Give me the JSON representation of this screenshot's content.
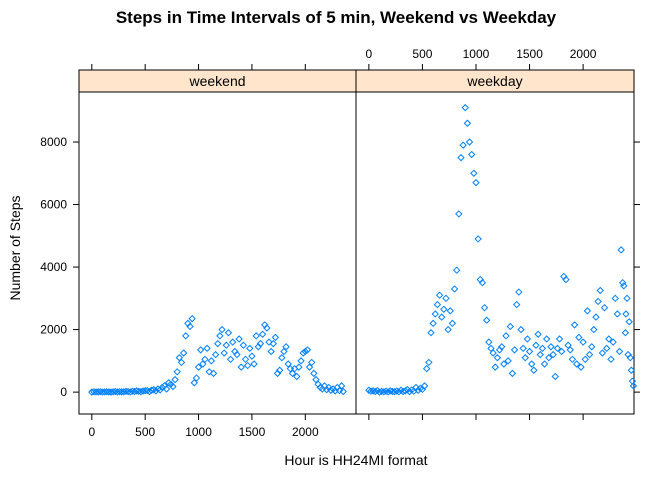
{
  "chart_data": {
    "type": "scatter",
    "title": "Steps in Time Intervals of 5 min, Weekend vs Weekday",
    "xlabel": "Hour is HH24MI format",
    "ylabel": "Number of Steps",
    "xlim": [
      -120,
      2475
    ],
    "ylim": [
      -700,
      9600
    ],
    "xticks": [
      0,
      500,
      1000,
      1500,
      2000
    ],
    "yticks": [
      0,
      2000,
      4000,
      6000,
      8000
    ],
    "marker": "open-diamond",
    "colors": {
      "points": "#0080ff",
      "strip_bg": "#ffe5cc",
      "frame": "#000000"
    },
    "panels": [
      {
        "name": "weekend",
        "points": [
          [
            0,
            0
          ],
          [
            20,
            10
          ],
          [
            40,
            5
          ],
          [
            60,
            8
          ],
          [
            80,
            15
          ],
          [
            100,
            2
          ],
          [
            120,
            5
          ],
          [
            140,
            12
          ],
          [
            160,
            7
          ],
          [
            180,
            0
          ],
          [
            200,
            10
          ],
          [
            220,
            20
          ],
          [
            240,
            5
          ],
          [
            260,
            15
          ],
          [
            280,
            8
          ],
          [
            300,
            12
          ],
          [
            320,
            25
          ],
          [
            340,
            18
          ],
          [
            360,
            6
          ],
          [
            380,
            30
          ],
          [
            400,
            20
          ],
          [
            420,
            40
          ],
          [
            440,
            25
          ],
          [
            460,
            15
          ],
          [
            480,
            35
          ],
          [
            500,
            45
          ],
          [
            520,
            50
          ],
          [
            540,
            20
          ],
          [
            560,
            60
          ],
          [
            580,
            80
          ],
          [
            600,
            40
          ],
          [
            620,
            100
          ],
          [
            640,
            70
          ],
          [
            660,
            150
          ],
          [
            680,
            200
          ],
          [
            700,
            100
          ],
          [
            720,
            300
          ],
          [
            740,
            250
          ],
          [
            760,
            180
          ],
          [
            780,
            400
          ],
          [
            800,
            650
          ],
          [
            820,
            1100
          ],
          [
            840,
            950
          ],
          [
            860,
            1250
          ],
          [
            880,
            1800
          ],
          [
            900,
            2200
          ],
          [
            920,
            2100
          ],
          [
            940,
            2350
          ],
          [
            960,
            300
          ],
          [
            980,
            450
          ],
          [
            1000,
            800
          ],
          [
            1020,
            1350
          ],
          [
            1040,
            900
          ],
          [
            1060,
            1050
          ],
          [
            1080,
            1400
          ],
          [
            1100,
            650
          ],
          [
            1120,
            1000
          ],
          [
            1140,
            600
          ],
          [
            1160,
            1200
          ],
          [
            1180,
            1550
          ],
          [
            1200,
            1800
          ],
          [
            1220,
            2000
          ],
          [
            1240,
            1250
          ],
          [
            1260,
            1500
          ],
          [
            1280,
            1900
          ],
          [
            1300,
            1050
          ],
          [
            1320,
            1600
          ],
          [
            1340,
            1300
          ],
          [
            1360,
            1200
          ],
          [
            1380,
            1700
          ],
          [
            1400,
            800
          ],
          [
            1420,
            1500
          ],
          [
            1440,
            1050
          ],
          [
            1460,
            850
          ],
          [
            1480,
            1400
          ],
          [
            1500,
            1150
          ],
          [
            1520,
            900
          ],
          [
            1540,
            1800
          ],
          [
            1560,
            1450
          ],
          [
            1580,
            1550
          ],
          [
            1600,
            1850
          ],
          [
            1620,
            2150
          ],
          [
            1640,
            2050
          ],
          [
            1660,
            1600
          ],
          [
            1680,
            1300
          ],
          [
            1700,
            1550
          ],
          [
            1720,
            1750
          ],
          [
            1740,
            600
          ],
          [
            1760,
            700
          ],
          [
            1780,
            1100
          ],
          [
            1800,
            1300
          ],
          [
            1820,
            1450
          ],
          [
            1840,
            900
          ],
          [
            1860,
            750
          ],
          [
            1880,
            600
          ],
          [
            1900,
            750
          ],
          [
            1920,
            500
          ],
          [
            1940,
            800
          ],
          [
            1960,
            1000
          ],
          [
            1980,
            1250
          ],
          [
            2000,
            1300
          ],
          [
            2020,
            1350
          ],
          [
            2040,
            800
          ],
          [
            2060,
            950
          ],
          [
            2080,
            600
          ],
          [
            2100,
            400
          ],
          [
            2120,
            250
          ],
          [
            2140,
            150
          ],
          [
            2160,
            100
          ],
          [
            2180,
            200
          ],
          [
            2200,
            80
          ],
          [
            2220,
            150
          ],
          [
            2240,
            60
          ],
          [
            2260,
            100
          ],
          [
            2280,
            40
          ],
          [
            2300,
            150
          ],
          [
            2320,
            50
          ],
          [
            2340,
            200
          ],
          [
            2355,
            20
          ]
        ]
      },
      {
        "name": "weekday",
        "points": [
          [
            0,
            60
          ],
          [
            20,
            30
          ],
          [
            40,
            40
          ],
          [
            60,
            20
          ],
          [
            80,
            50
          ],
          [
            100,
            0
          ],
          [
            120,
            25
          ],
          [
            140,
            10
          ],
          [
            160,
            30
          ],
          [
            180,
            5
          ],
          [
            200,
            40
          ],
          [
            220,
            20
          ],
          [
            240,
            15
          ],
          [
            260,
            35
          ],
          [
            280,
            10
          ],
          [
            300,
            60
          ],
          [
            320,
            20
          ],
          [
            340,
            40
          ],
          [
            360,
            80
          ],
          [
            380,
            15
          ],
          [
            400,
            70
          ],
          [
            420,
            30
          ],
          [
            440,
            150
          ],
          [
            460,
            60
          ],
          [
            480,
            120
          ],
          [
            500,
            90
          ],
          [
            520,
            200
          ],
          [
            540,
            750
          ],
          [
            560,
            950
          ],
          [
            580,
            1900
          ],
          [
            600,
            2200
          ],
          [
            620,
            2500
          ],
          [
            640,
            2800
          ],
          [
            660,
            3100
          ],
          [
            680,
            2400
          ],
          [
            700,
            2650
          ],
          [
            720,
            3000
          ],
          [
            740,
            2000
          ],
          [
            760,
            2600
          ],
          [
            780,
            2200
          ],
          [
            800,
            3300
          ],
          [
            820,
            3900
          ],
          [
            840,
            5700
          ],
          [
            860,
            7500
          ],
          [
            880,
            7900
          ],
          [
            900,
            9100
          ],
          [
            920,
            8600
          ],
          [
            940,
            8000
          ],
          [
            960,
            7600
          ],
          [
            980,
            7000
          ],
          [
            1000,
            6700
          ],
          [
            1020,
            4900
          ],
          [
            1040,
            3600
          ],
          [
            1060,
            3500
          ],
          [
            1080,
            2700
          ],
          [
            1100,
            2300
          ],
          [
            1120,
            1600
          ],
          [
            1140,
            1400
          ],
          [
            1160,
            1250
          ],
          [
            1180,
            800
          ],
          [
            1200,
            1100
          ],
          [
            1220,
            1350
          ],
          [
            1240,
            1450
          ],
          [
            1260,
            900
          ],
          [
            1280,
            1800
          ],
          [
            1300,
            1000
          ],
          [
            1320,
            2100
          ],
          [
            1340,
            600
          ],
          [
            1360,
            1350
          ],
          [
            1380,
            2800
          ],
          [
            1400,
            3200
          ],
          [
            1420,
            2000
          ],
          [
            1440,
            1400
          ],
          [
            1460,
            1100
          ],
          [
            1480,
            1700
          ],
          [
            1500,
            1300
          ],
          [
            1520,
            900
          ],
          [
            1540,
            700
          ],
          [
            1560,
            1500
          ],
          [
            1580,
            1850
          ],
          [
            1600,
            1200
          ],
          [
            1620,
            1400
          ],
          [
            1640,
            900
          ],
          [
            1660,
            1700
          ],
          [
            1680,
            1100
          ],
          [
            1700,
            1450
          ],
          [
            1720,
            1200
          ],
          [
            1740,
            500
          ],
          [
            1760,
            1400
          ],
          [
            1780,
            1700
          ],
          [
            1800,
            1300
          ],
          [
            1820,
            3700
          ],
          [
            1840,
            3600
          ],
          [
            1860,
            1500
          ],
          [
            1880,
            1350
          ],
          [
            1900,
            1050
          ],
          [
            1920,
            2150
          ],
          [
            1940,
            900
          ],
          [
            1960,
            1750
          ],
          [
            1980,
            800
          ],
          [
            2000,
            1600
          ],
          [
            2020,
            1050
          ],
          [
            2040,
            2600
          ],
          [
            2060,
            1200
          ],
          [
            2080,
            1450
          ],
          [
            2100,
            2000
          ],
          [
            2120,
            2400
          ],
          [
            2140,
            2900
          ],
          [
            2160,
            3250
          ],
          [
            2180,
            1250
          ],
          [
            2200,
            2700
          ],
          [
            2220,
            1400
          ],
          [
            2240,
            1700
          ],
          [
            2260,
            1050
          ],
          [
            2280,
            1600
          ],
          [
            2300,
            3000
          ],
          [
            2320,
            2500
          ],
          [
            2340,
            1300
          ],
          [
            2355,
            4550
          ],
          [
            2370,
            3500
          ],
          [
            2380,
            3400
          ],
          [
            2395,
            1900
          ],
          [
            2400,
            2500
          ],
          [
            2410,
            3000
          ],
          [
            2420,
            1200
          ],
          [
            2430,
            2250
          ],
          [
            2440,
            1100
          ],
          [
            2450,
            700
          ],
          [
            2460,
            350
          ],
          [
            2470,
            200
          ]
        ]
      }
    ]
  }
}
